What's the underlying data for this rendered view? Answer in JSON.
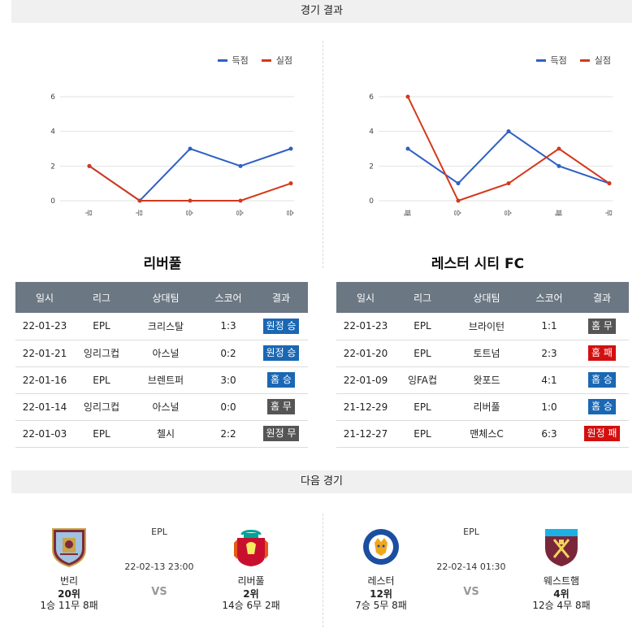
{
  "sections": {
    "results_title": "경기 결과",
    "next_title": "다음 경기"
  },
  "legend": {
    "scored": "득점",
    "conceded": "실점",
    "scored_color": "#2f5fc4",
    "conceded_color": "#d4381a"
  },
  "left": {
    "team": "리버풀",
    "chart_data": {
      "type": "line",
      "categories": [
        "무",
        "무",
        "승",
        "승",
        "승"
      ],
      "series": [
        {
          "name": "득점",
          "values": [
            2,
            0,
            3,
            2,
            3
          ]
        },
        {
          "name": "실점",
          "values": [
            2,
            0,
            0,
            0,
            1
          ]
        }
      ],
      "ylim": [
        0,
        6
      ],
      "yticks": [
        "0",
        "2",
        "4",
        "6"
      ]
    },
    "table": {
      "headers": [
        "일시",
        "리그",
        "상대팀",
        "스코어",
        "결과"
      ],
      "rows": [
        {
          "date": "22-01-23",
          "league": "EPL",
          "opp": "크리스탈",
          "score": "1:3",
          "result": "원정 승",
          "color": "#1a67b4"
        },
        {
          "date": "22-01-21",
          "league": "잉리그컵",
          "opp": "아스널",
          "score": "0:2",
          "result": "원정 승",
          "color": "#1a67b4"
        },
        {
          "date": "22-01-16",
          "league": "EPL",
          "opp": "브렌트퍼",
          "score": "3:0",
          "result": "홈 승",
          "color": "#1a67b4"
        },
        {
          "date": "22-01-14",
          "league": "잉리그컵",
          "opp": "아스널",
          "score": "0:0",
          "result": "홈 무",
          "color": "#555555"
        },
        {
          "date": "22-01-03",
          "league": "EPL",
          "opp": "첼시",
          "score": "2:2",
          "result": "원정 무",
          "color": "#555555"
        }
      ]
    }
  },
  "right": {
    "team": "레스터 시티 FC",
    "chart_data": {
      "type": "line",
      "categories": [
        "패",
        "승",
        "승",
        "패",
        "무"
      ],
      "series": [
        {
          "name": "득점",
          "values": [
            3,
            1,
            4,
            2,
            1
          ]
        },
        {
          "name": "실점",
          "values": [
            6,
            0,
            1,
            3,
            1
          ]
        }
      ],
      "ylim": [
        0,
        6
      ],
      "yticks": [
        "0",
        "2",
        "4",
        "6"
      ]
    },
    "table": {
      "headers": [
        "일시",
        "리그",
        "상대팀",
        "스코어",
        "결과"
      ],
      "rows": [
        {
          "date": "22-01-23",
          "league": "EPL",
          "opp": "브라이턴",
          "score": "1:1",
          "result": "홈 무",
          "color": "#555555"
        },
        {
          "date": "22-01-20",
          "league": "EPL",
          "opp": "토트넘",
          "score": "2:3",
          "result": "홈 패",
          "color": "#d40f0f"
        },
        {
          "date": "22-01-09",
          "league": "잉FA컵",
          "opp": "왓포드",
          "score": "4:1",
          "result": "홈 승",
          "color": "#1a67b4"
        },
        {
          "date": "21-12-29",
          "league": "EPL",
          "opp": "리버풀",
          "score": "1:0",
          "result": "홈 승",
          "color": "#1a67b4"
        },
        {
          "date": "21-12-27",
          "league": "EPL",
          "opp": "맨체스C",
          "score": "6:3",
          "result": "원정 패",
          "color": "#d40f0f"
        }
      ]
    }
  },
  "next_matches": [
    {
      "league": "EPL",
      "datetime": "22-02-13 23:00",
      "vs": "VS",
      "home": {
        "name": "번리",
        "rank": "20위",
        "record": "1승 11무 8패",
        "crest": "burnley-crest-icon"
      },
      "away": {
        "name": "리버풀",
        "rank": "2위",
        "record": "14승 6무 2패",
        "crest": "liverpool-crest-icon"
      }
    },
    {
      "league": "EPL",
      "datetime": "22-02-14 01:30",
      "vs": "VS",
      "home": {
        "name": "레스터",
        "rank": "12위",
        "record": "7승 5무 8패",
        "crest": "leicester-crest-icon"
      },
      "away": {
        "name": "웨스트햄",
        "rank": "4위",
        "record": "12승 4무 8패",
        "crest": "westham-crest-icon"
      }
    }
  ]
}
